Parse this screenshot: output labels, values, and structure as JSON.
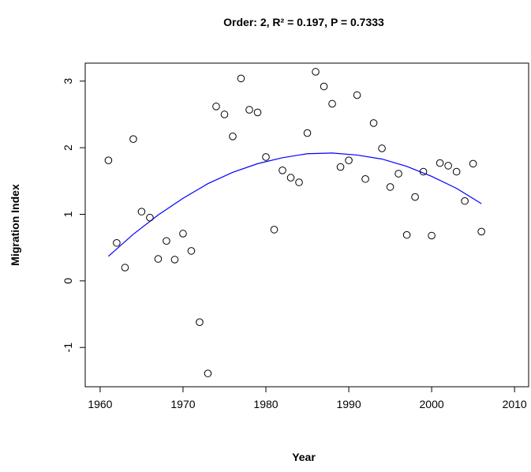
{
  "chart_data": {
    "type": "scatter",
    "title": "Order: 2, R² = 0.197, P = 0.7333",
    "xlabel": "Year",
    "ylabel": "Migration Index",
    "x": [
      1961,
      1962,
      1963,
      1964,
      1965,
      1966,
      1967,
      1968,
      1969,
      1970,
      1971,
      1972,
      1973,
      1974,
      1975,
      1976,
      1977,
      1978,
      1979,
      1980,
      1981,
      1982,
      1983,
      1984,
      1985,
      1986,
      1987,
      1988,
      1989,
      1990,
      1991,
      1992,
      1993,
      1994,
      1995,
      1996,
      1997,
      1998,
      1999,
      2000,
      2001,
      2002,
      2003,
      2004,
      2005,
      2006
    ],
    "values": [
      1.81,
      0.57,
      0.2,
      2.13,
      1.04,
      0.95,
      0.33,
      0.6,
      0.32,
      0.71,
      0.45,
      -0.62,
      -1.39,
      2.62,
      2.5,
      2.17,
      3.04,
      2.57,
      2.53,
      1.86,
      0.77,
      1.66,
      1.55,
      1.48,
      2.22,
      3.14,
      2.92,
      2.66,
      1.71,
      1.81,
      2.79,
      1.53,
      2.37,
      1.99,
      1.41,
      1.61,
      0.69,
      1.26,
      1.64,
      0.68,
      1.77,
      1.73,
      1.64,
      1.2,
      1.76,
      0.74
    ],
    "color": "#000000",
    "fit": {
      "x": [
        1961,
        1964,
        1967,
        1970,
        1973,
        1976,
        1979,
        1982,
        1985,
        1988,
        1991,
        1994,
        1997,
        2000,
        2003,
        2006
      ],
      "values": [
        0.37,
        0.7,
        0.99,
        1.24,
        1.46,
        1.63,
        1.76,
        1.85,
        1.91,
        1.92,
        1.89,
        1.83,
        1.72,
        1.57,
        1.39,
        1.16
      ],
      "color": "#0000ff"
    },
    "xlim": [
      1958.2,
      2011.7
    ],
    "ylim": [
      -1.59,
      3.27
    ],
    "xticks": [
      1960,
      1970,
      1980,
      1990,
      2000,
      2010
    ],
    "yticks": [
      -1,
      0,
      1,
      2,
      3
    ]
  }
}
